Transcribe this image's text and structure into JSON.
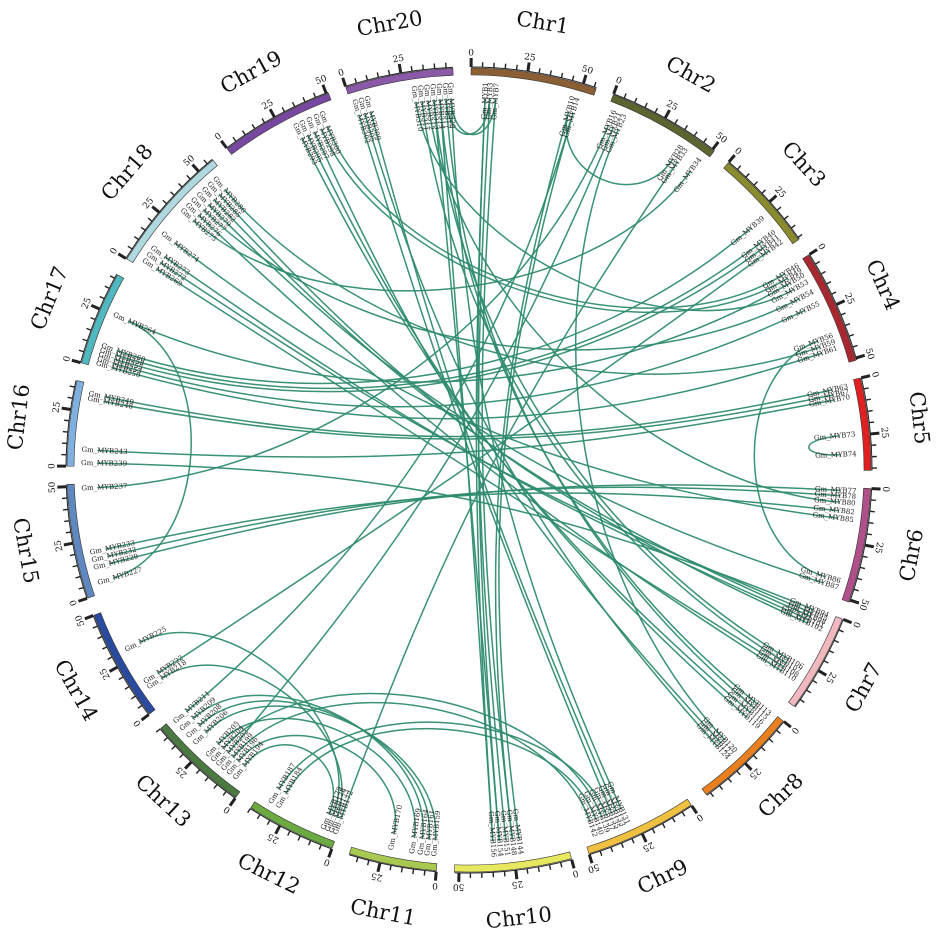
{
  "link_color": "#2e8b6f",
  "tick_values": [
    0,
    25,
    50
  ],
  "chromosomes": [
    {
      "name": "Chr1",
      "color": "#8b5e34",
      "length": 56
    },
    {
      "name": "Chr2",
      "color": "#5c6530",
      "length": 51
    },
    {
      "name": "Chr3",
      "color": "#8a8a2e",
      "length": 46
    },
    {
      "name": "Chr4",
      "color": "#a82830",
      "length": 51
    },
    {
      "name": "Chr5",
      "color": "#e02020",
      "length": 41
    },
    {
      "name": "Chr6",
      "color": "#b0508a",
      "length": 51
    },
    {
      "name": "Chr7",
      "color": "#f2b8bf",
      "length": 44
    },
    {
      "name": "Chr8",
      "color": "#e88020",
      "length": 47
    },
    {
      "name": "Chr9",
      "color": "#f0c040",
      "length": 50
    },
    {
      "name": "Chr10",
      "color": "#e8e860",
      "length": 52
    },
    {
      "name": "Chr11",
      "color": "#a8c850",
      "length": 39
    },
    {
      "name": "Chr12",
      "color": "#6aaa40",
      "length": 40
    },
    {
      "name": "Chr13",
      "color": "#4a7a40",
      "length": 45
    },
    {
      "name": "Chr14",
      "color": "#2a4aa0",
      "length": 50
    },
    {
      "name": "Chr15",
      "color": "#6088c0",
      "length": 51
    },
    {
      "name": "Chr16",
      "color": "#80b0e0",
      "length": 38
    },
    {
      "name": "Chr17",
      "color": "#50b8c0",
      "length": 42
    },
    {
      "name": "Chr18",
      "color": "#b0d8e0",
      "length": 58
    },
    {
      "name": "Chr19",
      "color": "#7848a0",
      "length": 51
    },
    {
      "name": "Chr20",
      "color": "#8a5aa8",
      "length": 48
    }
  ],
  "genes": [
    {
      "name": "Gm_MYB1",
      "chr": 0,
      "pos": 0.12
    },
    {
      "name": "Gm_MYB3",
      "chr": 0,
      "pos": 0.16
    },
    {
      "name": "Gm_MYB7",
      "chr": 0,
      "pos": 0.21
    },
    {
      "name": "Gm_MYB10",
      "chr": 0,
      "pos": 0.84
    },
    {
      "name": "Gm_MYB14",
      "chr": 0,
      "pos": 0.88
    },
    {
      "name": "Gm_MYB16",
      "chr": 1,
      "pos": 0.06
    },
    {
      "name": "Gm_MYB21",
      "chr": 1,
      "pos": 0.11
    },
    {
      "name": "Gm_MYB23",
      "chr": 1,
      "pos": 0.16
    },
    {
      "name": "Gm_MYB28",
      "chr": 1,
      "pos": 0.74
    },
    {
      "name": "Gm_MYB33",
      "chr": 1,
      "pos": 0.79
    },
    {
      "name": "Gm_MYB34",
      "chr": 1,
      "pos": 0.94
    },
    {
      "name": "Gm_MYB39",
      "chr": 2,
      "pos": 0.62
    },
    {
      "name": "Gm_MYB40",
      "chr": 2,
      "pos": 0.8
    },
    {
      "name": "Gm_MYB41",
      "chr": 2,
      "pos": 0.86
    },
    {
      "name": "Gm_MYB42",
      "chr": 2,
      "pos": 0.92
    },
    {
      "name": "Gm_MYB46",
      "chr": 3,
      "pos": 0.03
    },
    {
      "name": "Gm_MYB49",
      "chr": 3,
      "pos": 0.08
    },
    {
      "name": "Gm_MYB50",
      "chr": 3,
      "pos": 0.13
    },
    {
      "name": "Gm_MYB53",
      "chr": 3,
      "pos": 0.2
    },
    {
      "name": "Gm_MYB54",
      "chr": 3,
      "pos": 0.3
    },
    {
      "name": "Gm_MYB55",
      "chr": 3,
      "pos": 0.42
    },
    {
      "name": "Gm_MYB56",
      "chr": 3,
      "pos": 0.73
    },
    {
      "name": "Gm_MYB59",
      "chr": 3,
      "pos": 0.79
    },
    {
      "name": "Gm_MYB61",
      "chr": 3,
      "pos": 0.85
    },
    {
      "name": "Gm_MYB63",
      "chr": 4,
      "pos": 0.06
    },
    {
      "name": "Gm_MYB67",
      "chr": 4,
      "pos": 0.12
    },
    {
      "name": "Gm_MYB70",
      "chr": 4,
      "pos": 0.18
    },
    {
      "name": "Gm_MYB73",
      "chr": 4,
      "pos": 0.6
    },
    {
      "name": "Gm_MYB74",
      "chr": 4,
      "pos": 0.82
    },
    {
      "name": "Gm_MYB77",
      "chr": 5,
      "pos": 0.03
    },
    {
      "name": "Gm_MYB78",
      "chr": 5,
      "pos": 0.08
    },
    {
      "name": "Gm_MYB80",
      "chr": 5,
      "pos": 0.14
    },
    {
      "name": "Gm_MYB82",
      "chr": 5,
      "pos": 0.22
    },
    {
      "name": "Gm_MYB85",
      "chr": 5,
      "pos": 0.29
    },
    {
      "name": "Gm_MYB86",
      "chr": 5,
      "pos": 0.85
    },
    {
      "name": "Gm_MYB87",
      "chr": 5,
      "pos": 0.91
    },
    {
      "name": "Gm_MYB94",
      "chr": 6,
      "pos": 0.02
    },
    {
      "name": "Gm_MYB95",
      "chr": 6,
      "pos": 0.06
    },
    {
      "name": "Gm_MYB98",
      "chr": 6,
      "pos": 0.1
    },
    {
      "name": "Gm_MYB101",
      "chr": 6,
      "pos": 0.14
    },
    {
      "name": "Gm_MYB102",
      "chr": 6,
      "pos": 0.18
    },
    {
      "name": "Gm_MYB106",
      "chr": 6,
      "pos": 0.62
    },
    {
      "name": "Gm_MYB107",
      "chr": 6,
      "pos": 0.67
    },
    {
      "name": "Gm_MYB108",
      "chr": 6,
      "pos": 0.72
    },
    {
      "name": "Gm_MYB110",
      "chr": 6,
      "pos": 0.77
    },
    {
      "name": "Gm_MYB113",
      "chr": 7,
      "pos": 0.03
    },
    {
      "name": "Gm_MYB115",
      "chr": 7,
      "pos": 0.08
    },
    {
      "name": "Gm_MYB116",
      "chr": 7,
      "pos": 0.14
    },
    {
      "name": "Gm_MYB119",
      "chr": 7,
      "pos": 0.2
    },
    {
      "name": "Gm_MYB120",
      "chr": 7,
      "pos": 0.52
    },
    {
      "name": "Gm_MYB122",
      "chr": 7,
      "pos": 0.57
    },
    {
      "name": "Gm_MYB124",
      "chr": 7,
      "pos": 0.62
    },
    {
      "name": "Gm_MYB131",
      "chr": 8,
      "pos": 0.58
    },
    {
      "name": "Gm_MYB133",
      "chr": 8,
      "pos": 0.63
    },
    {
      "name": "Gm_MYB135",
      "chr": 8,
      "pos": 0.68
    },
    {
      "name": "Gm_MYB137",
      "chr": 8,
      "pos": 0.73
    },
    {
      "name": "Gm_MYB139",
      "chr": 8,
      "pos": 0.78
    },
    {
      "name": "Gm_MYB140",
      "chr": 8,
      "pos": 0.84
    },
    {
      "name": "Gm_MYB142",
      "chr": 8,
      "pos": 0.9
    },
    {
      "name": "Gm_MYB144",
      "chr": 9,
      "pos": 0.42
    },
    {
      "name": "Gm_MYB148",
      "chr": 9,
      "pos": 0.48
    },
    {
      "name": "Gm_MYB151",
      "chr": 9,
      "pos": 0.54
    },
    {
      "name": "Gm_MYB154",
      "chr": 9,
      "pos": 0.6
    },
    {
      "name": "Gm_MYB156",
      "chr": 9,
      "pos": 0.66
    },
    {
      "name": "Gm_MYB159",
      "chr": 10,
      "pos": 0.04
    },
    {
      "name": "Gm_MYB161",
      "chr": 10,
      "pos": 0.12
    },
    {
      "name": "Gm_MYB164",
      "chr": 10,
      "pos": 0.2
    },
    {
      "name": "Gm_MYB169",
      "chr": 10,
      "pos": 0.3
    },
    {
      "name": "Gm_MYB170",
      "chr": 10,
      "pos": 0.55
    },
    {
      "name": "Gm_MYB172",
      "chr": 11,
      "pos": 0.02
    },
    {
      "name": "Gm_MYB173",
      "chr": 11,
      "pos": 0.07
    },
    {
      "name": "Gm_MYB178",
      "chr": 11,
      "pos": 0.12
    },
    {
      "name": "Gm_MYB179",
      "chr": 11,
      "pos": 0.17
    },
    {
      "name": "Gm_MYB184",
      "chr": 11,
      "pos": 0.74
    },
    {
      "name": "Gm_MYB187",
      "chr": 11,
      "pos": 0.84
    },
    {
      "name": "Gm_MYB194",
      "chr": 12,
      "pos": 0.12
    },
    {
      "name": "Gm_MYB196",
      "chr": 12,
      "pos": 0.2
    },
    {
      "name": "Gm_MYB199",
      "chr": 12,
      "pos": 0.27
    },
    {
      "name": "Gm_MYB202",
      "chr": 12,
      "pos": 0.34
    },
    {
      "name": "Gm_MYB204",
      "chr": 12,
      "pos": 0.41
    },
    {
      "name": "Gm_MYB205",
      "chr": 12,
      "pos": 0.48
    },
    {
      "name": "Gm_MYB206",
      "chr": 12,
      "pos": 0.66
    },
    {
      "name": "Gm_MYB208",
      "chr": 12,
      "pos": 0.76
    },
    {
      "name": "Gm_MYB209",
      "chr": 12,
      "pos": 0.86
    },
    {
      "name": "Gm_MYB211",
      "chr": 12,
      "pos": 0.96
    },
    {
      "name": "Gm_MYB218",
      "chr": 13,
      "pos": 0.2
    },
    {
      "name": "Gm_MYB222",
      "chr": 13,
      "pos": 0.26
    },
    {
      "name": "Gm_MYB225",
      "chr": 13,
      "pos": 0.6
    },
    {
      "name": "Gm_MYB227",
      "chr": 14,
      "pos": 0.1
    },
    {
      "name": "Gm_MYB229",
      "chr": 14,
      "pos": 0.24
    },
    {
      "name": "Gm_MYB232",
      "chr": 14,
      "pos": 0.31
    },
    {
      "name": "Gm_MYB233",
      "chr": 14,
      "pos": 0.38
    },
    {
      "name": "Gm_MYB237",
      "chr": 14,
      "pos": 0.96
    },
    {
      "name": "Gm_MYB239",
      "chr": 15,
      "pos": 0.04
    },
    {
      "name": "Gm_MYB243",
      "chr": 15,
      "pos": 0.2
    },
    {
      "name": "Gm_MYB248",
      "chr": 15,
      "pos": 0.82
    },
    {
      "name": "Gm_MYB249",
      "chr": 15,
      "pos": 0.88
    },
    {
      "name": "Gm_MYB250",
      "chr": 16,
      "pos": 0.04
    },
    {
      "name": "Gm_MYB253",
      "chr": 16,
      "pos": 0.09
    },
    {
      "name": "Gm_MYB255",
      "chr": 16,
      "pos": 0.14
    },
    {
      "name": "Gm_MYB258",
      "chr": 16,
      "pos": 0.19
    },
    {
      "name": "Gm_MYB260",
      "chr": 16,
      "pos": 0.24
    },
    {
      "name": "Gm_MYB264",
      "chr": 16,
      "pos": 0.6
    },
    {
      "name": "Gm_MYB269",
      "chr": 17,
      "pos": 0.06
    },
    {
      "name": "Gm_MYB272",
      "chr": 17,
      "pos": 0.12
    },
    {
      "name": "Gm_MYB273",
      "chr": 17,
      "pos": 0.18
    },
    {
      "name": "Gm_MYB274",
      "chr": 17,
      "pos": 0.32
    },
    {
      "name": "Gm_MYB275",
      "chr": 17,
      "pos": 0.56
    },
    {
      "name": "Gm_MYB276",
      "chr": 17,
      "pos": 0.62
    },
    {
      "name": "Gm_MYB277",
      "chr": 17,
      "pos": 0.68
    },
    {
      "name": "Gm_MYB279",
      "chr": 17,
      "pos": 0.74
    },
    {
      "name": "Gm_MYB282",
      "chr": 17,
      "pos": 0.8
    },
    {
      "name": "Gm_MYB285",
      "chr": 17,
      "pos": 0.86
    },
    {
      "name": "Gm_MYB286",
      "chr": 17,
      "pos": 0.92
    },
    {
      "name": "Gm_MYB293",
      "chr": 18,
      "pos": 0.62
    },
    {
      "name": "Gm_MYB295",
      "chr": 18,
      "pos": 0.68
    },
    {
      "name": "Gm_MYB297",
      "chr": 18,
      "pos": 0.75
    },
    {
      "name": "Gm_MYB298",
      "chr": 18,
      "pos": 0.82
    },
    {
      "name": "Gm_MYB300",
      "chr": 18,
      "pos": 0.88
    },
    {
      "name": "Gm_MYB302",
      "chr": 19,
      "pos": 0.04
    },
    {
      "name": "Gm_MYB305",
      "chr": 19,
      "pos": 0.1
    },
    {
      "name": "Gm_MYB309",
      "chr": 19,
      "pos": 0.16
    },
    {
      "name": "Gm_MYB310",
      "chr": 19,
      "pos": 0.62
    },
    {
      "name": "Gm_MYB311",
      "chr": 19,
      "pos": 0.68
    },
    {
      "name": "Gm_MYB312",
      "chr": 19,
      "pos": 0.74
    },
    {
      "name": "Gm_MYB313",
      "chr": 19,
      "pos": 0.8
    },
    {
      "name": "Gm_MYB314",
      "chr": 19,
      "pos": 0.86
    },
    {
      "name": "Gm_MYB317",
      "chr": 19,
      "pos": 0.92
    },
    {
      "name": "Gm_MYB320",
      "chr": 19,
      "pos": 0.97
    }
  ],
  "links": [
    [
      "Gm_MYB1",
      "Gm_MYB156"
    ],
    [
      "Gm_MYB3",
      "Gm_MYB154"
    ],
    [
      "Gm_MYB7",
      "Gm_MYB148"
    ],
    [
      "Gm_MYB10",
      "Gm_MYB28"
    ],
    [
      "Gm_MYB14",
      "Gm_MYB211"
    ],
    [
      "Gm_MYB16",
      "Gm_MYB237"
    ],
    [
      "Gm_MYB21",
      "Gm_MYB202"
    ],
    [
      "Gm_MYB23",
      "Gm_MYB120"
    ],
    [
      "Gm_MYB33",
      "Gm_MYB172"
    ],
    [
      "Gm_MYB34",
      "Gm_MYB275"
    ],
    [
      "Gm_MYB39",
      "Gm_MYB260"
    ],
    [
      "Gm_MYB40",
      "Gm_MYB258"
    ],
    [
      "Gm_MYB41",
      "Gm_MYB255"
    ],
    [
      "Gm_MYB42",
      "Gm_MYB222"
    ],
    [
      "Gm_MYB46",
      "Gm_MYB300"
    ],
    [
      "Gm_MYB49",
      "Gm_MYB298"
    ],
    [
      "Gm_MYB50",
      "Gm_MYB264"
    ],
    [
      "Gm_MYB53",
      "Gm_MYB310"
    ],
    [
      "Gm_MYB54",
      "Gm_MYB277"
    ],
    [
      "Gm_MYB55",
      "Gm_MYB253"
    ],
    [
      "Gm_MYB56",
      "Gm_MYB86"
    ],
    [
      "Gm_MYB59",
      "Gm_MYB286"
    ],
    [
      "Gm_MYB61",
      "Gm_MYB250"
    ],
    [
      "Gm_MYB63",
      "Gm_MYB249"
    ],
    [
      "Gm_MYB67",
      "Gm_MYB248"
    ],
    [
      "Gm_MYB70",
      "Gm_MYB243"
    ],
    [
      "Gm_MYB73",
      "Gm_MYB74"
    ],
    [
      "Gm_MYB77",
      "Gm_MYB229"
    ],
    [
      "Gm_MYB78",
      "Gm_MYB232"
    ],
    [
      "Gm_MYB80",
      "Gm_MYB312"
    ],
    [
      "Gm_MYB82",
      "Gm_MYB233"
    ],
    [
      "Gm_MYB85",
      "Gm_MYB274"
    ],
    [
      "Gm_MYB87",
      "Gm_MYB279"
    ],
    [
      "Gm_MYB94",
      "Gm_MYB239"
    ],
    [
      "Gm_MYB95",
      "Gm_MYB272"
    ],
    [
      "Gm_MYB98",
      "Gm_MYB282"
    ],
    [
      "Gm_MYB101",
      "Gm_MYB273"
    ],
    [
      "Gm_MYB102",
      "Gm_MYB285"
    ],
    [
      "Gm_MYB106",
      "Gm_MYB313"
    ],
    [
      "Gm_MYB107",
      "Gm_MYB311"
    ],
    [
      "Gm_MYB108",
      "Gm_MYB269"
    ],
    [
      "Gm_MYB110",
      "Gm_MYB276"
    ],
    [
      "Gm_MYB113",
      "Gm_MYB314"
    ],
    [
      "Gm_MYB115",
      "Gm_MYB317"
    ],
    [
      "Gm_MYB116",
      "Gm_MYB293"
    ],
    [
      "Gm_MYB119",
      "Gm_MYB295"
    ],
    [
      "Gm_MYB122",
      "Gm_MYB297"
    ],
    [
      "Gm_MYB124",
      "Gm_MYB305"
    ],
    [
      "Gm_MYB131",
      "Gm_MYB320"
    ],
    [
      "Gm_MYB133",
      "Gm_MYB309"
    ],
    [
      "Gm_MYB135",
      "Gm_MYB302"
    ],
    [
      "Gm_MYB137",
      "Gm_MYB187"
    ],
    [
      "Gm_MYB139",
      "Gm_MYB204"
    ],
    [
      "Gm_MYB140",
      "Gm_MYB184"
    ],
    [
      "Gm_MYB142",
      "Gm_MYB199"
    ],
    [
      "Gm_MYB144",
      "Gm_MYB14"
    ],
    [
      "Gm_MYB151",
      "Gm_MYB1"
    ],
    [
      "Gm_MYB159",
      "Gm_MYB206"
    ],
    [
      "Gm_MYB161",
      "Gm_MYB208"
    ],
    [
      "Gm_MYB164",
      "Gm_MYB209"
    ],
    [
      "Gm_MYB169",
      "Gm_MYB205"
    ],
    [
      "Gm_MYB170",
      "Gm_MYB196"
    ],
    [
      "Gm_MYB173",
      "Gm_MYB218"
    ],
    [
      "Gm_MYB178",
      "Gm_MYB225"
    ],
    [
      "Gm_MYB179",
      "Gm_MYB194"
    ],
    [
      "Gm_MYB227",
      "Gm_MYB264"
    ],
    [
      "Gm_MYB7",
      "Gm_MYB320"
    ],
    [
      "Gm_MYB3",
      "Gm_MYB317"
    ],
    [
      "Gm_MYB148",
      "Gm_MYB10"
    ],
    [
      "Gm_MYB154",
      "Gm_MYB313"
    ],
    [
      "Gm_MYB156",
      "Gm_MYB314"
    ]
  ]
}
